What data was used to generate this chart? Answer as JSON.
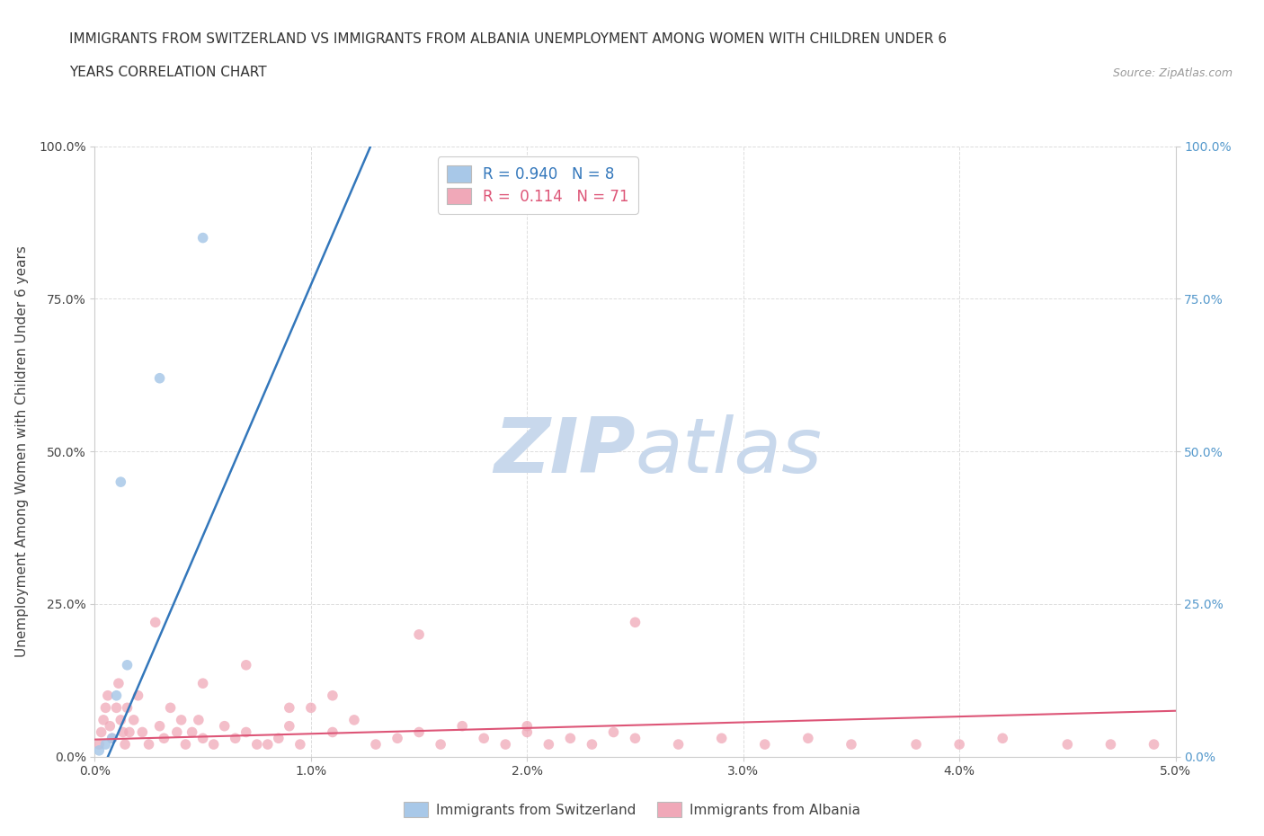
{
  "title_line1": "IMMIGRANTS FROM SWITZERLAND VS IMMIGRANTS FROM ALBANIA UNEMPLOYMENT AMONG WOMEN WITH CHILDREN UNDER 6",
  "title_line2": "YEARS CORRELATION CHART",
  "source_text": "Source: ZipAtlas.com",
  "ylabel": "Unemployment Among Women with Children Under 6 years",
  "xlim": [
    0.0,
    0.05
  ],
  "ylim": [
    0.0,
    1.0
  ],
  "xticks": [
    0.0,
    0.01,
    0.02,
    0.03,
    0.04,
    0.05
  ],
  "xticklabels": [
    "0.0%",
    "1.0%",
    "2.0%",
    "3.0%",
    "4.0%",
    "5.0%"
  ],
  "yticks": [
    0.0,
    0.25,
    0.5,
    0.75,
    1.0
  ],
  "yticklabels": [
    "0.0%",
    "25.0%",
    "50.0%",
    "75.0%",
    "100.0%"
  ],
  "background_color": "#ffffff",
  "grid_color": "#dddddd",
  "watermark_zip": "ZIP",
  "watermark_atlas": "atlas",
  "watermark_color_zip": "#c8d8ec",
  "watermark_color_atlas": "#c8d8ec",
  "legend_r_switzerland": "0.940",
  "legend_n_switzerland": "8",
  "legend_r_albania": "0.114",
  "legend_n_albania": "71",
  "switzerland_color": "#a8c8e8",
  "albania_color": "#f0a8b8",
  "regression_switzerland_color": "#3377bb",
  "regression_albania_color": "#dd5577",
  "switzerland_x": [
    0.0002,
    0.0005,
    0.0008,
    0.001,
    0.0012,
    0.0015,
    0.003,
    0.005
  ],
  "switzerland_y": [
    0.01,
    0.02,
    0.03,
    0.1,
    0.45,
    0.15,
    0.62,
    0.85
  ],
  "albania_x": [
    0.0002,
    0.0003,
    0.0004,
    0.0005,
    0.0006,
    0.0007,
    0.0008,
    0.001,
    0.0011,
    0.0012,
    0.0013,
    0.0014,
    0.0015,
    0.0016,
    0.0018,
    0.002,
    0.0022,
    0.0025,
    0.0028,
    0.003,
    0.0032,
    0.0035,
    0.0038,
    0.004,
    0.0042,
    0.0045,
    0.0048,
    0.005,
    0.0055,
    0.006,
    0.0065,
    0.007,
    0.0075,
    0.008,
    0.0085,
    0.009,
    0.0095,
    0.01,
    0.011,
    0.012,
    0.013,
    0.014,
    0.015,
    0.016,
    0.017,
    0.018,
    0.019,
    0.02,
    0.021,
    0.022,
    0.023,
    0.024,
    0.025,
    0.027,
    0.029,
    0.031,
    0.033,
    0.035,
    0.038,
    0.04,
    0.042,
    0.045,
    0.047,
    0.049,
    0.005,
    0.007,
    0.009,
    0.011,
    0.015,
    0.02,
    0.025
  ],
  "albania_y": [
    0.02,
    0.04,
    0.06,
    0.08,
    0.1,
    0.05,
    0.03,
    0.08,
    0.12,
    0.06,
    0.04,
    0.02,
    0.08,
    0.04,
    0.06,
    0.1,
    0.04,
    0.02,
    0.22,
    0.05,
    0.03,
    0.08,
    0.04,
    0.06,
    0.02,
    0.04,
    0.06,
    0.03,
    0.02,
    0.05,
    0.03,
    0.04,
    0.02,
    0.02,
    0.03,
    0.05,
    0.02,
    0.08,
    0.04,
    0.06,
    0.02,
    0.03,
    0.04,
    0.02,
    0.05,
    0.03,
    0.02,
    0.04,
    0.02,
    0.03,
    0.02,
    0.04,
    0.03,
    0.02,
    0.03,
    0.02,
    0.03,
    0.02,
    0.02,
    0.02,
    0.03,
    0.02,
    0.02,
    0.02,
    0.12,
    0.15,
    0.08,
    0.1,
    0.2,
    0.05,
    0.22
  ]
}
